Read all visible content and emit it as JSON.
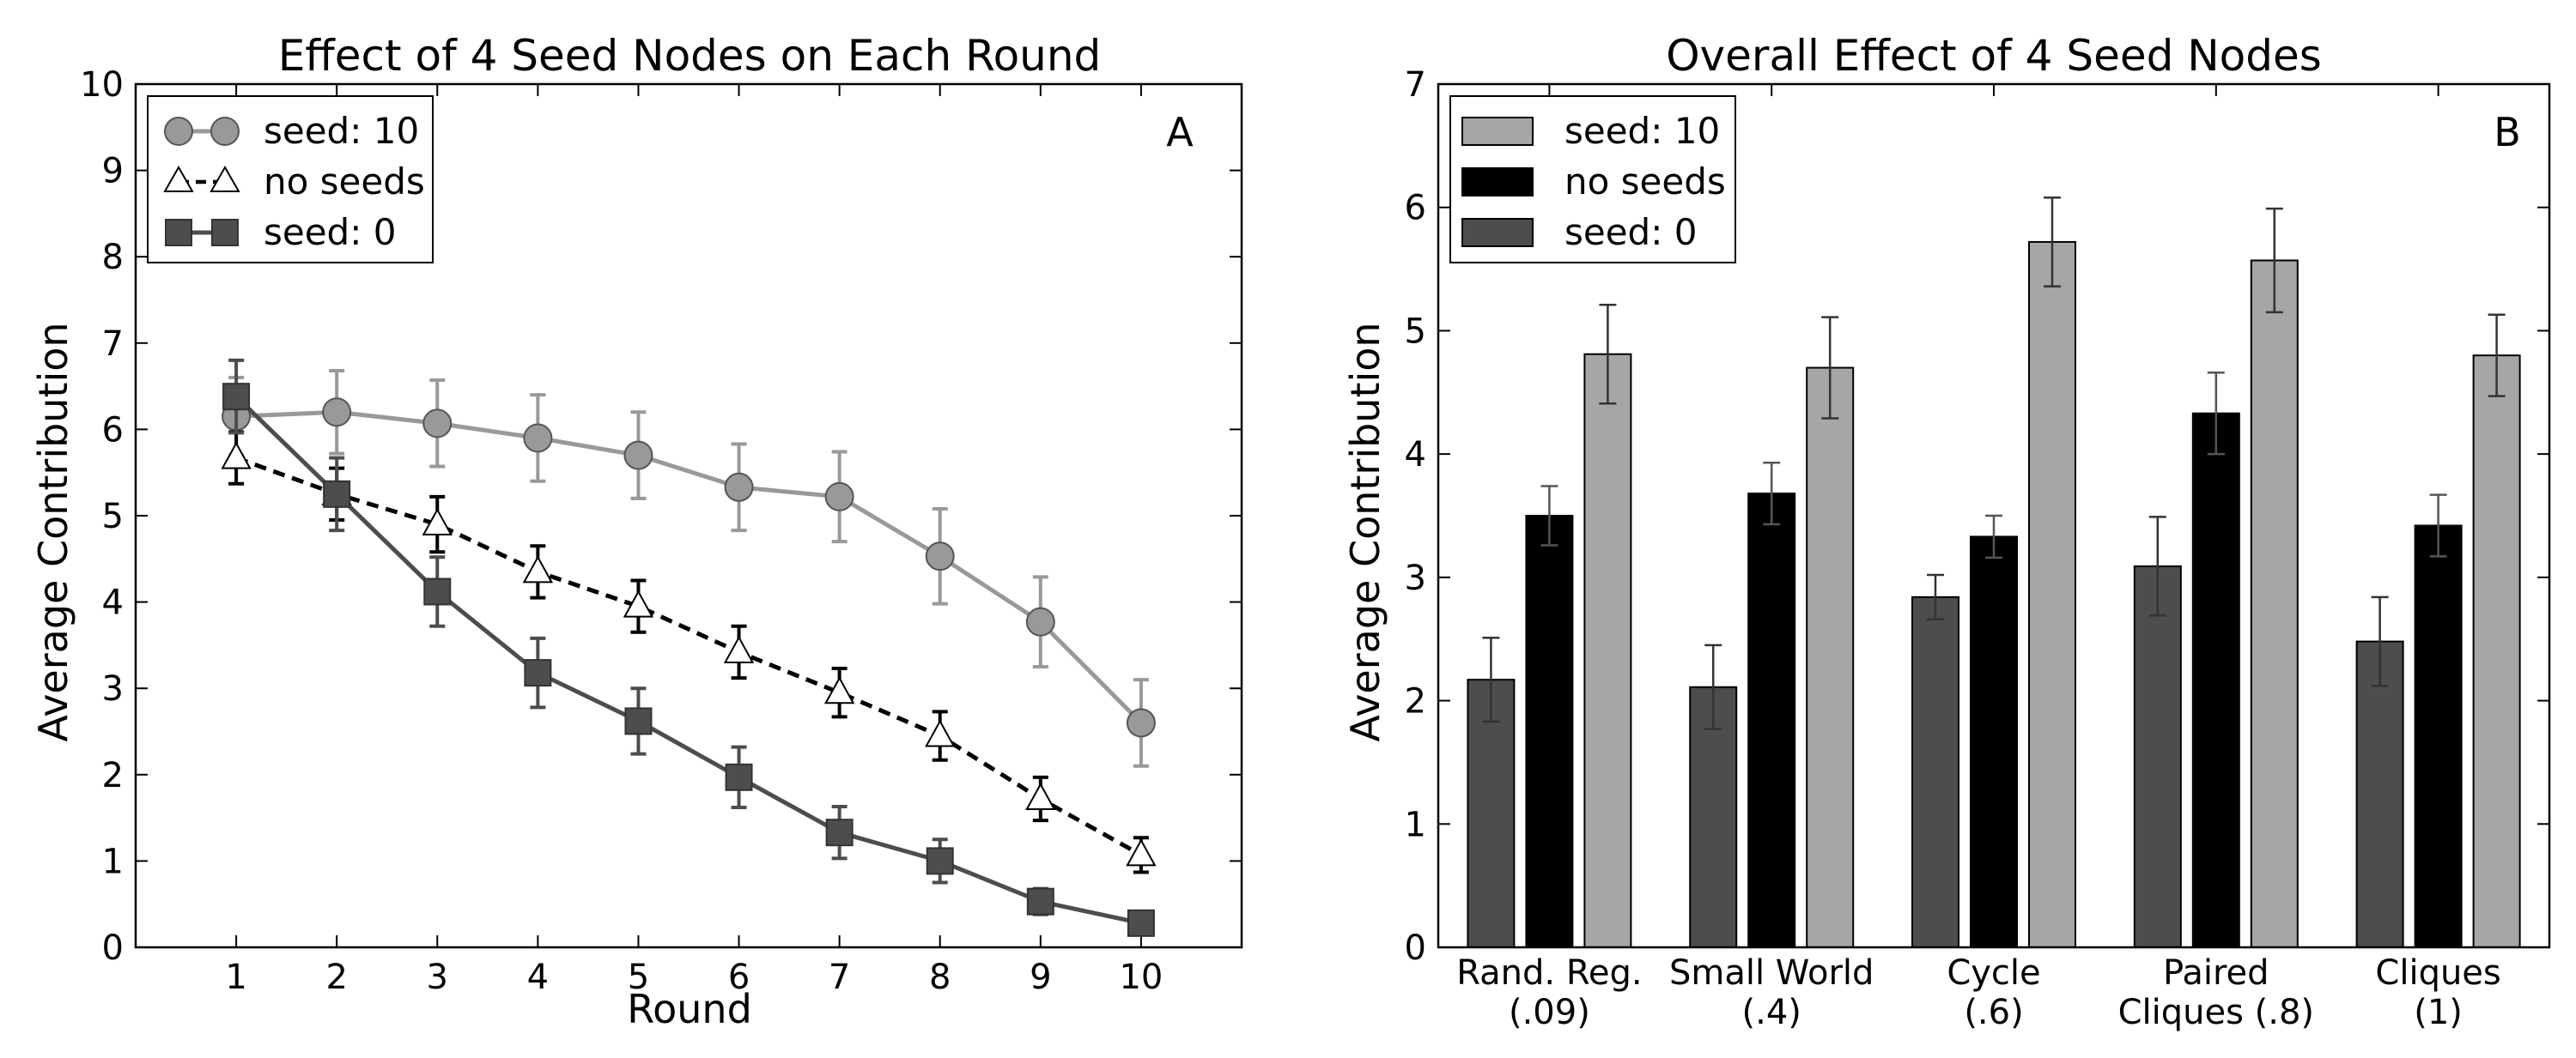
{
  "chart_data": [
    {
      "type": "line",
      "title": "Effect of 4 Seed Nodes on Each Round",
      "panel_letter": "A",
      "xlabel": "Round",
      "ylabel": "Average Contribution",
      "xlim": [
        0,
        11
      ],
      "ylim": [
        0,
        10
      ],
      "x_ticks": [
        1,
        2,
        3,
        4,
        5,
        6,
        7,
        8,
        9,
        10
      ],
      "y_ticks": [
        0,
        1,
        2,
        3,
        4,
        5,
        6,
        7,
        8,
        9,
        10
      ],
      "legend_position": "top-left",
      "series": [
        {
          "name": "seed: 10",
          "marker": "circle",
          "line": "solid",
          "color": "#999999",
          "x": [
            1,
            2,
            3,
            4,
            5,
            6,
            7,
            8,
            9,
            10
          ],
          "values": [
            6.15,
            6.2,
            6.07,
            5.9,
            5.7,
            5.33,
            5.22,
            4.53,
            3.77,
            2.6
          ],
          "errors": [
            0.45,
            0.48,
            0.5,
            0.5,
            0.5,
            0.5,
            0.52,
            0.55,
            0.52,
            0.5
          ]
        },
        {
          "name": "no seeds",
          "marker": "triangle",
          "line": "dashed",
          "color": "#ffffff",
          "x": [
            1,
            2,
            3,
            4,
            5,
            6,
            7,
            8,
            9,
            10
          ],
          "values": [
            5.67,
            5.25,
            4.9,
            4.35,
            3.95,
            3.42,
            2.95,
            2.45,
            1.72,
            1.07
          ],
          "errors": [
            0.3,
            0.3,
            0.32,
            0.3,
            0.3,
            0.3,
            0.28,
            0.28,
            0.25,
            0.2
          ]
        },
        {
          "name": "seed: 0",
          "marker": "square",
          "line": "solid",
          "color": "#4d4d4d",
          "x": [
            1,
            2,
            3,
            4,
            5,
            6,
            7,
            8,
            9,
            10
          ],
          "values": [
            6.38,
            5.25,
            4.12,
            3.18,
            2.62,
            1.97,
            1.33,
            1.0,
            0.53,
            0.28
          ],
          "errors": [
            0.42,
            0.42,
            0.4,
            0.4,
            0.38,
            0.35,
            0.3,
            0.25,
            0.15,
            0.08
          ]
        }
      ]
    },
    {
      "type": "bar",
      "title": "Overall Effect of 4 Seed Nodes",
      "panel_letter": "B",
      "xlabel": "",
      "ylabel": "Average Contribution",
      "ylim": [
        0,
        7
      ],
      "y_ticks": [
        0,
        1,
        2,
        3,
        4,
        5,
        6,
        7
      ],
      "legend_position": "top-left",
      "categories": [
        [
          "Rand. Reg.",
          "(.09)"
        ],
        [
          "Small World",
          "(.4)"
        ],
        [
          "Cycle",
          "(.6)"
        ],
        [
          "Paired",
          "Cliques (.8)"
        ],
        [
          "Cliques",
          "(1)"
        ]
      ],
      "series": [
        {
          "name": "seed: 0",
          "color": "#4d4d4d",
          "values": [
            2.17,
            2.11,
            2.84,
            3.09,
            2.48
          ],
          "errors": [
            0.34,
            0.34,
            0.18,
            0.4,
            0.36
          ]
        },
        {
          "name": "no seeds",
          "color": "#000000",
          "values": [
            3.5,
            3.68,
            3.33,
            4.33,
            3.42
          ],
          "errors": [
            0.24,
            0.25,
            0.17,
            0.33,
            0.25
          ]
        },
        {
          "name": "seed: 10",
          "color": "#a6a6a6",
          "values": [
            4.81,
            4.7,
            5.72,
            5.57,
            4.8
          ],
          "errors": [
            0.4,
            0.41,
            0.36,
            0.42,
            0.33
          ]
        }
      ],
      "legend_order": [
        "seed: 10",
        "no seeds",
        "seed: 0"
      ]
    }
  ]
}
